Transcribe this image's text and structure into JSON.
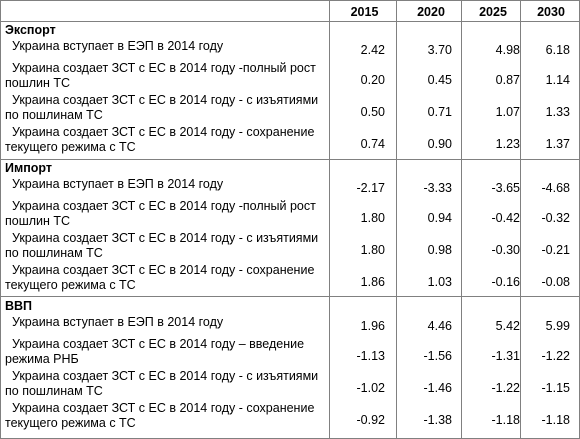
{
  "years": [
    "2015",
    "2020",
    "2025",
    "2030"
  ],
  "sections": [
    {
      "title": "Экспорт",
      "rows": [
        {
          "label": "  Украина вступает в ЕЭП в 2014 году",
          "values": [
            "2.42",
            "3.70",
            "4.98",
            "6.18"
          ]
        },
        {
          "label": "  Украина создает ЗСТ с ЕС в 2014 году -полный рост\nпошлин ТС",
          "values": [
            "0.20",
            "0.45",
            "0.87",
            "1.14"
          ]
        },
        {
          "label": "  Украина создает ЗСТ с ЕС в 2014 году - с изъятиями\nпо пошлинам ТС",
          "values": [
            "0.50",
            "0.71",
            "1.07",
            "1.33"
          ]
        },
        {
          "label": "  Украина создает ЗСТ с ЕС в 2014 году - сохранение\nтекущего режима с ТС",
          "values": [
            "0.74",
            "0.90",
            "1.23",
            "1.37"
          ]
        }
      ]
    },
    {
      "title": "Импорт",
      "rows": [
        {
          "label": "  Украина вступает в ЕЭП в 2014 году",
          "values": [
            "-2.17",
            "-3.33",
            "-3.65",
            "-4.68"
          ]
        },
        {
          "label": "  Украина создает ЗСТ с ЕС в 2014 году -полный рост\nпошлин ТС",
          "values": [
            "1.80",
            "0.94",
            "-0.42",
            "-0.32"
          ]
        },
        {
          "label": "  Украина создает ЗСТ с ЕС в 2014 году - с изъятиями\nпо пошлинам ТС",
          "values": [
            "1.80",
            "0.98",
            "-0.30",
            "-0.21"
          ]
        },
        {
          "label": "  Украина создает ЗСТ с ЕС в 2014 году - сохранение\nтекущего режима с ТС",
          "values": [
            "1.86",
            "1.03",
            "-0.16",
            "-0.08"
          ]
        }
      ]
    },
    {
      "title": "ВВП",
      "rows": [
        {
          "label": "  Украина вступает в ЕЭП в 2014 году",
          "values": [
            "1.96",
            "4.46",
            "5.42",
            "5.99"
          ]
        },
        {
          "label": "  Украина создает ЗСТ с ЕС в 2014 году – введение\nрежима РНБ",
          "values": [
            "-1.13",
            "-1.56",
            "-1.31",
            "-1.22"
          ]
        },
        {
          "label": "  Украина создает ЗСТ с ЕС в 2014 году - с изъятиями\nпо пошлинам ТС",
          "values": [
            "-1.02",
            "-1.46",
            "-1.22",
            "-1.15"
          ]
        },
        {
          "label": "  Украина создает ЗСТ с ЕС в 2014 году - сохранение\nтекущего режима с ТС",
          "values": [
            "-0.92",
            "-1.38",
            "-1.18",
            "-1.18"
          ]
        }
      ]
    }
  ]
}
